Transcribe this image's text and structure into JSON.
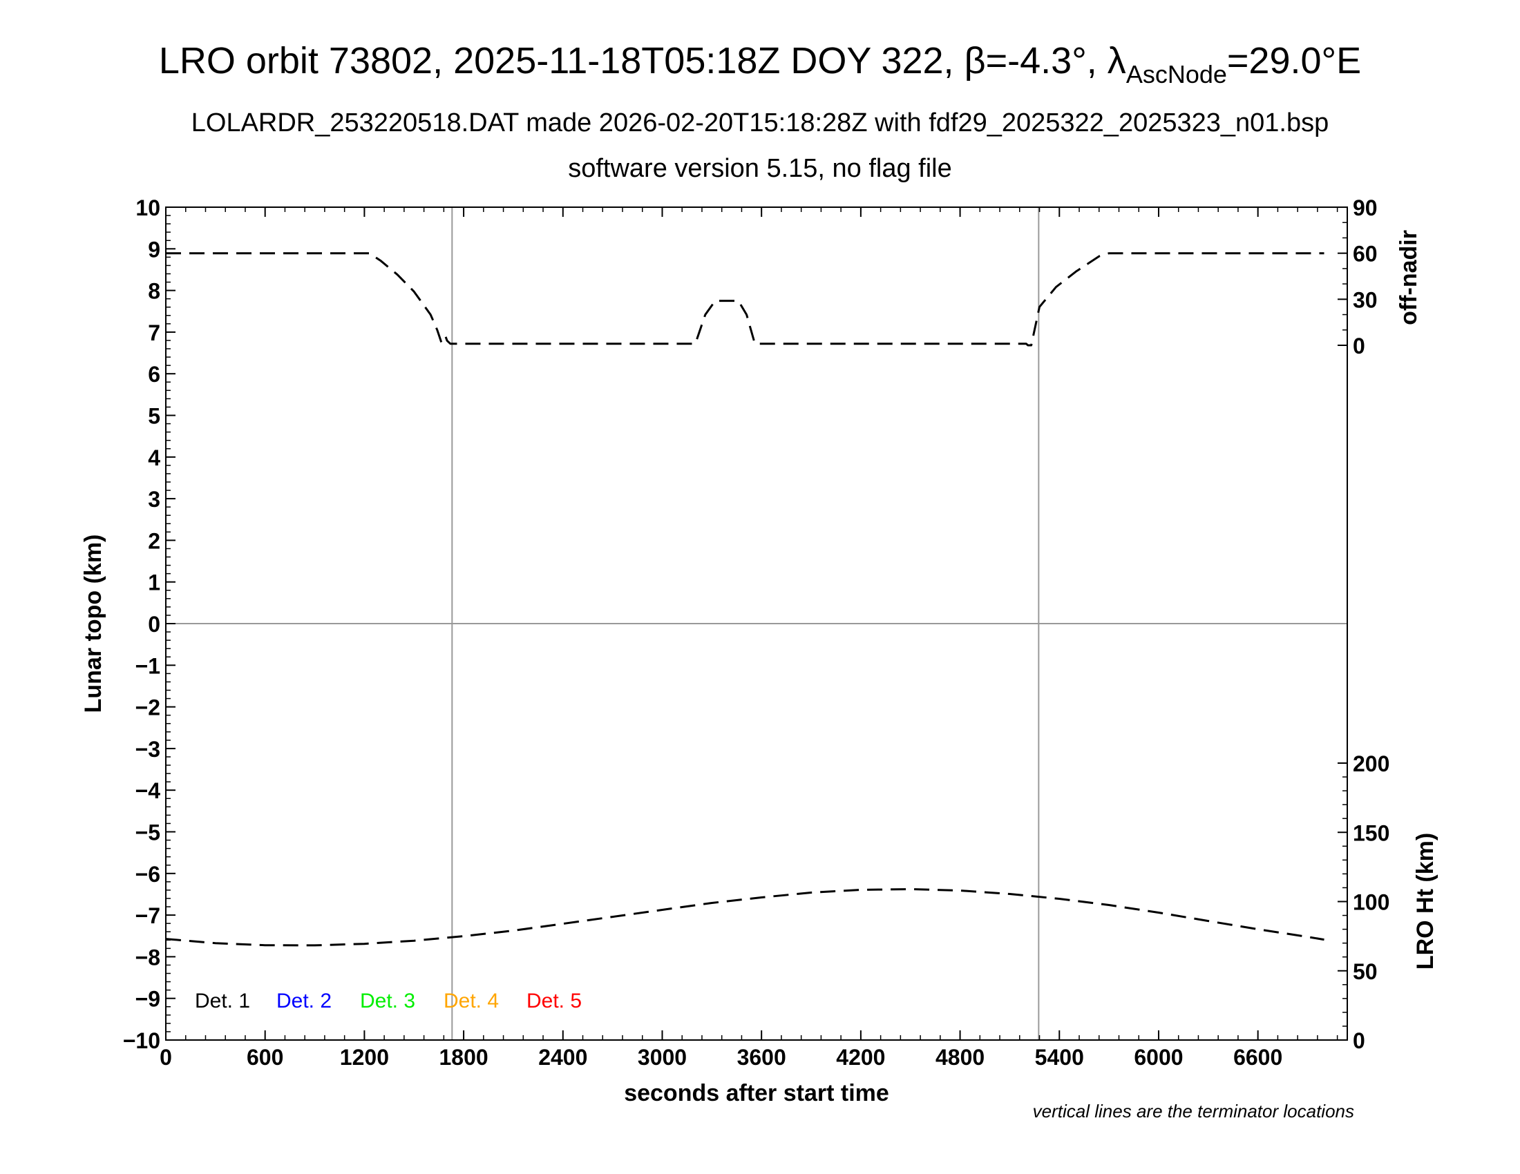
{
  "chart_data": {
    "type": "line",
    "title_main": "LRO orbit 73802, 2025-11-18T05:18Z DOY 322, β=-4.3°, λ",
    "title_sub": "AscNode",
    "title_tail": "=29.0°E",
    "subtitle_1": "LOLARDR_253220518.DAT made 2026-02-20T15:18:28Z with fdf29_2025322_2025323_n01.bsp",
    "subtitle_2": "software version 5.15, no flag file",
    "xlabel": "seconds after start time",
    "ylabel": "Lunar topo (km)",
    "y2_top_label": "off-nadir",
    "y2_bottom_label": "LRO Ht (km)",
    "note": "vertical lines are the terminator locations",
    "xlim": [
      0,
      7140
    ],
    "ylim": [
      -10,
      10
    ],
    "x_ticks": [
      0,
      600,
      1200,
      1800,
      2400,
      3000,
      3600,
      4200,
      4800,
      5400,
      6000,
      6600
    ],
    "x_tick_labels": [
      "0",
      "600",
      "1200",
      "1800",
      "2400",
      "3000",
      "3600",
      "4200",
      "4800",
      "5400",
      "6000",
      "6600"
    ],
    "y_ticks": [
      -10,
      -9,
      -8,
      -7,
      -6,
      -5,
      -4,
      -3,
      -2,
      -1,
      0,
      1,
      2,
      3,
      4,
      5,
      6,
      7,
      8,
      9,
      10
    ],
    "y_tick_labels": [
      "−10",
      "−9",
      "−8",
      "−7",
      "−6",
      "−5",
      "−4",
      "−3",
      "−2",
      "−1",
      "0",
      "1",
      "2",
      "3",
      "4",
      "5",
      "6",
      "7",
      "8",
      "9",
      "10"
    ],
    "offnadir_ticks": [
      0,
      30,
      60,
      90
    ],
    "offnadir_tick_labels": [
      "0",
      "30",
      "60",
      "90"
    ],
    "height_ticks": [
      0,
      50,
      100,
      150,
      200
    ],
    "height_tick_labels": [
      "0",
      "50",
      "100",
      "150",
      "200"
    ],
    "terminators_x": [
      1730,
      5275
    ],
    "zero_line": true,
    "legend": [
      {
        "label": "Det. 1",
        "color": "#000000"
      },
      {
        "label": "Det. 2",
        "color": "#0000ff"
      },
      {
        "label": "Det. 3",
        "color": "#00ee00"
      },
      {
        "label": "Det. 4",
        "color": "#ffa500"
      },
      {
        "label": "Det. 5",
        "color": "#ff0000"
      }
    ],
    "series": [
      {
        "axis": "off-nadir",
        "x": [
          0,
          1230,
          1300,
          1400,
          1500,
          1600,
          1640,
          1665,
          1690,
          1700,
          1720,
          1760,
          1900,
          2500,
          3200,
          3260,
          3320,
          3400,
          3460,
          3510,
          3560,
          3580,
          4500,
          5200,
          5210,
          5230,
          5280,
          5380,
          5500,
          5640,
          5700,
          5740,
          7000
        ],
        "y": [
          60,
          60,
          55,
          46,
          35,
          20,
          10,
          2,
          6,
          3,
          1,
          1,
          1,
          1,
          1,
          20,
          29,
          29,
          29,
          20,
          1,
          1,
          1,
          1,
          0,
          0,
          25,
          38,
          48,
          58,
          60,
          60,
          60
        ]
      },
      {
        "axis": "height",
        "x": [
          0,
          300,
          600,
          900,
          1200,
          1500,
          1800,
          2100,
          2400,
          2700,
          3000,
          3300,
          3600,
          3900,
          4200,
          4500,
          4800,
          5100,
          5400,
          5700,
          6000,
          6300,
          6600,
          6900,
          7000
        ],
        "y": [
          73,
          70,
          68.5,
          68.4,
          69.5,
          71.7,
          75,
          79,
          84,
          89,
          94,
          99,
          103,
          106.5,
          108.5,
          109,
          108,
          105.5,
          102,
          97.5,
          92,
          86,
          80,
          74.5,
          72.5
        ]
      }
    ]
  }
}
